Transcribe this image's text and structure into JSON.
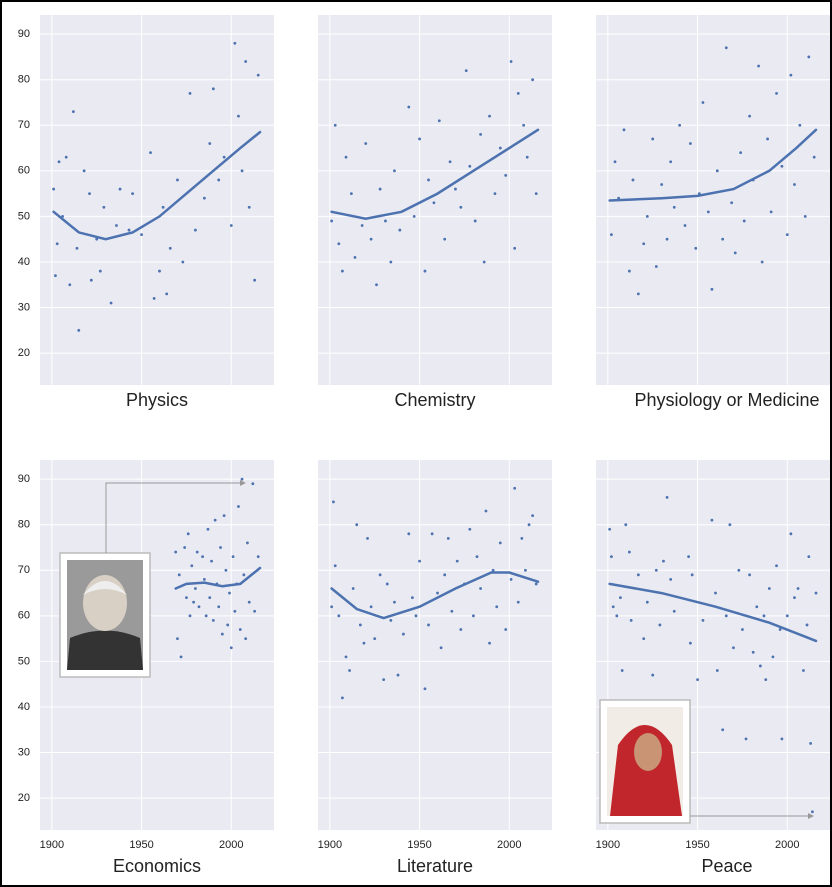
{
  "chart_data": {
    "type": "scatter",
    "xlim": [
      1893.4,
      2023.8
    ],
    "ylim": [
      13,
      94.2
    ],
    "xticks": [
      1900,
      1950,
      2000
    ],
    "yticks": [
      20,
      30,
      40,
      50,
      60,
      70,
      80,
      90
    ],
    "grid": true,
    "color": "#4c72b0",
    "panels": [
      {
        "title": "Physics",
        "x": [
          1901,
          1902,
          1903,
          1904,
          1906,
          1908,
          1910,
          1912,
          1914,
          1915,
          1918,
          1921,
          1922,
          1925,
          1927,
          1929,
          1933,
          1936,
          1938,
          1943,
          1945,
          1950,
          1955,
          1957,
          1960,
          1962,
          1964,
          1966,
          1970,
          1973,
          1977,
          1980,
          1985,
          1988,
          1990,
          1993,
          1996,
          2000,
          2002,
          2004,
          2006,
          2008,
          2010,
          2013,
          2015
        ],
        "values": [
          56,
          37,
          44,
          62,
          50,
          63,
          35,
          73,
          43,
          25,
          60,
          55,
          36,
          45,
          38,
          52,
          31,
          48,
          56,
          47,
          55,
          46,
          64,
          32,
          38,
          52,
          33,
          43,
          58,
          40,
          77,
          47,
          54,
          66,
          78,
          58,
          63,
          48,
          88,
          72,
          60,
          84,
          52,
          36,
          81
        ],
        "trend": {
          "x": [
            1901,
            1915,
            1930,
            1945,
            1960,
            1975,
            1990,
            2005,
            2016
          ],
          "values": [
            51,
            46.5,
            45,
            46.5,
            50,
            55,
            60,
            65,
            68.5
          ]
        }
      },
      {
        "title": "Chemistry",
        "x": [
          1901,
          1903,
          1905,
          1907,
          1909,
          1912,
          1914,
          1918,
          1920,
          1923,
          1926,
          1928,
          1931,
          1934,
          1936,
          1939,
          1944,
          1947,
          1950,
          1953,
          1955,
          1958,
          1961,
          1964,
          1967,
          1970,
          1973,
          1976,
          1978,
          1981,
          1984,
          1986,
          1989,
          1992,
          1995,
          1998,
          2001,
          2003,
          2005,
          2008,
          2010,
          2013,
          2015
        ],
        "values": [
          49,
          70,
          44,
          38,
          63,
          55,
          41,
          48,
          66,
          45,
          35,
          56,
          49,
          40,
          60,
          47,
          74,
          50,
          67,
          38,
          58,
          53,
          71,
          45,
          62,
          56,
          52,
          82,
          61,
          49,
          68,
          40,
          72,
          55,
          65,
          59,
          84,
          43,
          77,
          70,
          63,
          80,
          55
        ],
        "trend": {
          "x": [
            1901,
            1920,
            1940,
            1960,
            1980,
            2000,
            2016
          ],
          "values": [
            51,
            49.5,
            51,
            55,
            60,
            65,
            69
          ]
        }
      },
      {
        "title": "Physiology or Medicine",
        "x": [
          1902,
          1904,
          1906,
          1909,
          1912,
          1914,
          1917,
          1920,
          1922,
          1925,
          1927,
          1930,
          1933,
          1935,
          1937,
          1940,
          1943,
          1946,
          1949,
          1951,
          1953,
          1956,
          1958,
          1961,
          1964,
          1966,
          1969,
          1971,
          1974,
          1976,
          1979,
          1981,
          1984,
          1986,
          1989,
          1991,
          1994,
          1997,
          2000,
          2002,
          2004,
          2007,
          2010,
          2012,
          2015
        ],
        "values": [
          46,
          62,
          54,
          69,
          38,
          58,
          33,
          44,
          50,
          67,
          39,
          57,
          45,
          62,
          52,
          70,
          48,
          66,
          43,
          55,
          75,
          51,
          34,
          60,
          45,
          87,
          53,
          42,
          64,
          49,
          72,
          58,
          83,
          40,
          67,
          51,
          77,
          61,
          46,
          81,
          57,
          70,
          50,
          85,
          63
        ],
        "trend": {
          "x": [
            1901,
            1930,
            1950,
            1970,
            1990,
            2005,
            2016
          ],
          "values": [
            53.5,
            54,
            54.5,
            56,
            60,
            65,
            69
          ]
        }
      },
      {
        "title": "Economics",
        "x": [
          1969,
          1970,
          1971,
          1972,
          1974,
          1975,
          1976,
          1977,
          1978,
          1979,
          1980,
          1981,
          1982,
          1984,
          1985,
          1986,
          1987,
          1988,
          1989,
          1990,
          1991,
          1992,
          1993,
          1994,
          1995,
          1996,
          1997,
          1998,
          1999,
          2000,
          2001,
          2002,
          2003,
          2004,
          2005,
          2006,
          2007,
          2008,
          2009,
          2010,
          2012,
          2013,
          2015
        ],
        "values": [
          74,
          55,
          69,
          51,
          75,
          64,
          78,
          60,
          71,
          63,
          66,
          74,
          62,
          73,
          68,
          60,
          79,
          64,
          72,
          59,
          81,
          67,
          62,
          75,
          56,
          82,
          70,
          58,
          65,
          53,
          73,
          61,
          67,
          84,
          57,
          90,
          69,
          55,
          76,
          63,
          89,
          61,
          73
        ],
        "trend": {
          "x": [
            1969,
            1975,
            1985,
            1995,
            2005,
            2016
          ],
          "values": [
            66,
            67,
            67.3,
            66.5,
            67,
            70.5
          ]
        }
      },
      {
        "title": "Literature",
        "x": [
          1901,
          1902,
          1903,
          1905,
          1907,
          1909,
          1911,
          1913,
          1915,
          1917,
          1919,
          1921,
          1923,
          1925,
          1928,
          1930,
          1932,
          1934,
          1936,
          1938,
          1941,
          1944,
          1946,
          1948,
          1950,
          1953,
          1955,
          1957,
          1960,
          1962,
          1964,
          1966,
          1968,
          1971,
          1973,
          1975,
          1978,
          1980,
          1982,
          1984,
          1987,
          1989,
          1991,
          1993,
          1995,
          1998,
          2001,
          2003,
          2005,
          2007,
          2009,
          2011,
          2013,
          2015
        ],
        "values": [
          62,
          85,
          71,
          60,
          42,
          51,
          48,
          66,
          80,
          58,
          54,
          77,
          62,
          55,
          69,
          46,
          67,
          59,
          63,
          47,
          56,
          78,
          64,
          60,
          72,
          44,
          58,
          78,
          65,
          53,
          69,
          77,
          61,
          72,
          57,
          67,
          79,
          60,
          73,
          66,
          83,
          54,
          70,
          62,
          76,
          57,
          68,
          88,
          63,
          77,
          70,
          80,
          82,
          67
        ],
        "trend": {
          "x": [
            1901,
            1915,
            1930,
            1950,
            1970,
            1990,
            2000,
            2016
          ],
          "values": [
            66,
            61.5,
            59.5,
            62,
            66,
            69.5,
            69.5,
            67.5
          ]
        }
      },
      {
        "title": "Peace",
        "x": [
          1901,
          1902,
          1903,
          1905,
          1907,
          1908,
          1910,
          1912,
          1913,
          1917,
          1920,
          1922,
          1925,
          1927,
          1929,
          1931,
          1933,
          1935,
          1937,
          1945,
          1946,
          1947,
          1950,
          1953,
          1958,
          1960,
          1961,
          1964,
          1966,
          1968,
          1970,
          1973,
          1975,
          1977,
          1979,
          1981,
          1983,
          1985,
          1987,
          1988,
          1990,
          1992,
          1994,
          1996,
          1997,
          2000,
          2002,
          2004,
          2006,
          2009,
          2011,
          2012,
          2013,
          2014,
          2016
        ],
        "values": [
          79,
          73,
          62,
          60,
          64,
          48,
          80,
          74,
          59,
          69,
          55,
          63,
          47,
          70,
          58,
          72,
          86,
          68,
          61,
          73,
          54,
          69,
          46,
          59,
          81,
          65,
          48,
          35,
          60,
          80,
          53,
          70,
          57,
          33,
          69,
          52,
          62,
          49,
          60,
          46,
          66,
          51,
          71,
          57,
          33,
          60,
          78,
          64,
          66,
          48,
          58,
          73,
          32,
          17,
          65
        ],
        "trend": {
          "x": [
            1901,
            1930,
            1960,
            1990,
            2016
          ],
          "values": [
            67,
            65,
            62,
            58.5,
            54.5
          ]
        }
      }
    ]
  }
}
